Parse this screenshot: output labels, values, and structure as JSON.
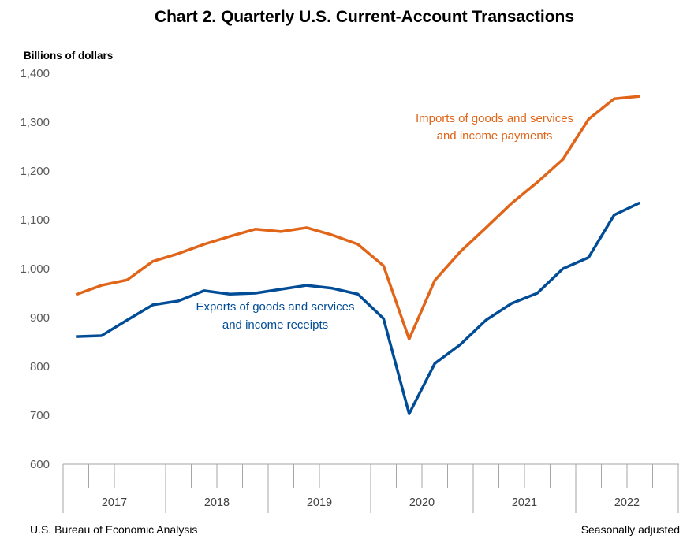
{
  "chart_data": {
    "type": "line",
    "title": "Chart 2. Quarterly U.S. Current-Account Transactions",
    "ylabel": "Billions of dollars",
    "xlabel": "",
    "ylim": [
      600,
      1400
    ],
    "yticks": [
      "600",
      "700",
      "800",
      "900",
      "1,000",
      "1,100",
      "1,200",
      "1,300",
      "1,400"
    ],
    "ytick_values": [
      600,
      700,
      800,
      900,
      1000,
      1100,
      1200,
      1300,
      1400
    ],
    "year_labels": [
      "2017",
      "2018",
      "2019",
      "2020",
      "2021",
      "2022"
    ],
    "x": [
      "2017Q1",
      "2017Q2",
      "2017Q3",
      "2017Q4",
      "2018Q1",
      "2018Q2",
      "2018Q3",
      "2018Q4",
      "2019Q1",
      "2019Q2",
      "2019Q3",
      "2019Q4",
      "2020Q1",
      "2020Q2",
      "2020Q3",
      "2020Q4",
      "2021Q1",
      "2021Q2",
      "2021Q3",
      "2021Q4",
      "2022Q1",
      "2022Q2",
      "2022Q3"
    ],
    "grid": false,
    "series": [
      {
        "name": "Imports of goods and services and income payments",
        "label_lines": [
          "Imports of goods and services",
          "and income payments"
        ],
        "color": "#E06519",
        "values": [
          947,
          966,
          977,
          1015,
          1031,
          1050,
          1066,
          1081,
          1076,
          1084,
          1069,
          1050,
          1006,
          856,
          976,
          1035,
          1084,
          1134,
          1177,
          1224,
          1306,
          1348,
          1353
        ]
      },
      {
        "name": "Exports of goods and services and income receipts",
        "label_lines": [
          "Exports of goods and services",
          "and income receipts"
        ],
        "color": "#004C97",
        "values": [
          861,
          863,
          895,
          926,
          934,
          955,
          948,
          950,
          958,
          966,
          960,
          948,
          898,
          703,
          806,
          845,
          895,
          929,
          950,
          1000,
          1023,
          1110,
          1135
        ]
      }
    ]
  },
  "footer": {
    "source": "U.S. Bureau of Economic Analysis",
    "note": "Seasonally adjusted"
  }
}
